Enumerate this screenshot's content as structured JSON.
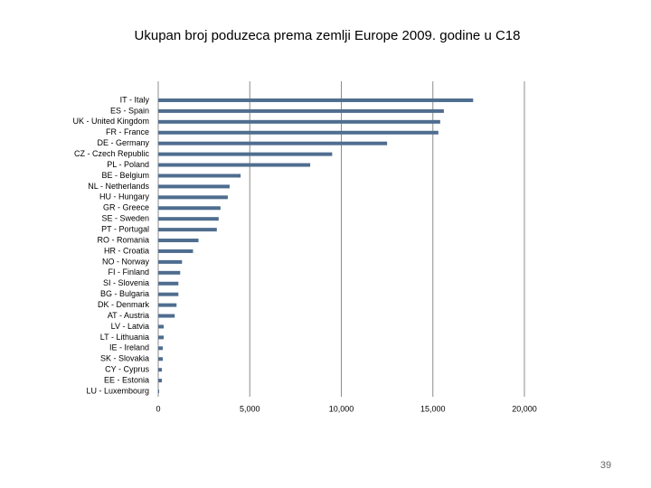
{
  "chart_data": {
    "type": "barh",
    "title": "Ukupan broj poduzeca prema zemlji Europe 2009. godine u C18",
    "categories": [
      "IT - Italy",
      "ES - Spain",
      "UK - United Kingdom",
      "FR - France",
      "DE - Germany",
      "CZ - Czech Republic",
      "PL - Poland",
      "BE - Belgium",
      "NL - Netherlands",
      "HU - Hungary",
      "GR - Greece",
      "SE - Sweden",
      "PT - Portugal",
      "RO - Romania",
      "HR - Croatia",
      "NO - Norway",
      "FI - Finland",
      "SI - Slovenia",
      "BG - Bulgaria",
      "DK - Denmark",
      "AT - Austria",
      "LV - Latvia",
      "LT - Lithuania",
      "IE - Ireland",
      "SK - Slovakia",
      "CY - Cyprus",
      "EE - Estonia",
      "LU - Luxembourg"
    ],
    "values": [
      17200,
      15600,
      15400,
      15300,
      12500,
      9500,
      8300,
      4500,
      3900,
      3800,
      3400,
      3300,
      3200,
      2200,
      1900,
      1300,
      1200,
      1100,
      1100,
      1000,
      900,
      300,
      300,
      250,
      250,
      200,
      200,
      50
    ],
    "color": "#4f6d8f",
    "xlim": [
      0,
      20000
    ],
    "xticks": [
      0,
      {
        "value": 5000,
        "label": "5,000"
      },
      {
        "value": 10000,
        "label": "10,000"
      },
      {
        "value": 15000,
        "label": "15,000"
      },
      {
        "value": 20000,
        "label": "20,000"
      }
    ],
    "grid": true
  },
  "page_number": "39"
}
